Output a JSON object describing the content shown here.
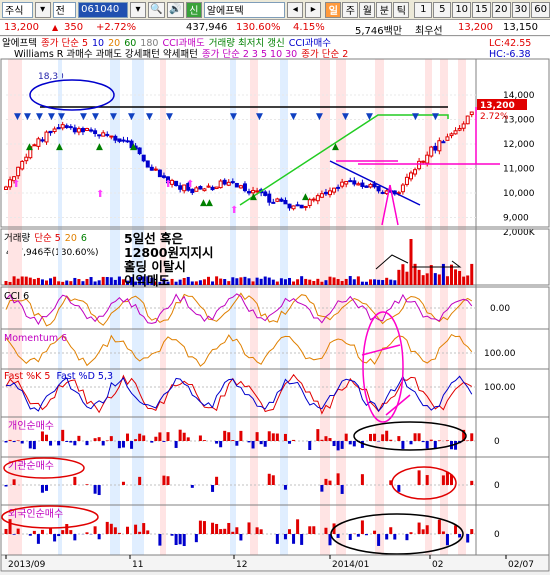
{
  "toolbar": {
    "market_label": "주식",
    "period_label": "전",
    "stock_code": "061040",
    "stock_badge": "신",
    "stock_name": "알에프텍",
    "buttons": [
      "일",
      "주",
      "월",
      "분",
      "틱"
    ],
    "active_button": "일",
    "numbers": [
      "1",
      "5",
      "10",
      "15",
      "20",
      "30",
      "60"
    ]
  },
  "info": {
    "price": "13,200",
    "change": "350",
    "change_pct": "+2.72%",
    "volume": "437,946",
    "volume_ratio": "130.60%",
    "turnover_ratio": "4.15%",
    "amount": "5,746백만",
    "high_label": "최우선",
    "ask": "13,200",
    "bid": "13,150"
  },
  "price_panel": {
    "header_line1": [
      {
        "text": "알에프텍",
        "color": "#000000"
      },
      {
        "text": "종가 단순 5",
        "color": "#e00000"
      },
      {
        "text": "10",
        "color": "#0000cc"
      },
      {
        "text": "20",
        "color": "#e08000"
      },
      {
        "text": "60",
        "color": "#008000"
      },
      {
        "text": "180",
        "color": "#808080"
      },
      {
        "text": "CCI과매도",
        "color": "#c000c0"
      },
      {
        "text": "거래량 최저치 갱신",
        "color": "#008000"
      },
      {
        "text": "CCI과매수",
        "color": "#0000cc"
      }
    ],
    "header_line2": [
      {
        "text": "Williams R 과매수 과매도 강세패턴 약세패턴",
        "color": "#000000"
      },
      {
        "text": "종가 단순 2 3 5 10 30",
        "color": "#c000c0"
      },
      {
        "text": "종가 단순 2",
        "color": "#e00000"
      }
    ],
    "lc": "LC:42.55",
    "hc": "HC:-6.38",
    "price_tag": "13,200",
    "pct_tag": "2.72%",
    "axis": [
      "14,000",
      "13,000",
      "12,000",
      "11,000",
      "10,000",
      "9,000"
    ],
    "top_label": "18,30"
  },
  "volume_panel": {
    "header": [
      {
        "text": "거래량",
        "color": "#000000"
      },
      {
        "text": "단순 5",
        "color": "#e00000"
      },
      {
        "text": "20",
        "color": "#e08000"
      },
      {
        "text": "6",
        "color": "#008000"
      }
    ],
    "sub": "437,946주(130.60%)",
    "axis": "2,000K",
    "annotation_lines": [
      "5일선 혹은",
      "12800원지지시",
      "홀딩 이탈시",
      "이익매도"
    ]
  },
  "cci_panel": {
    "title": "CCI 6",
    "axis": "0.00"
  },
  "momentum_panel": {
    "title": "Momentum 6",
    "axis": "100.00"
  },
  "stoch_panel": {
    "title_k": "Fast %K 5",
    "title_d": "Fast %D 5,3",
    "axis": "100.00"
  },
  "individual_panel": {
    "title": "개인순매수",
    "axis": "0"
  },
  "institution_panel": {
    "title": "기관순매수",
    "axis": "0"
  },
  "foreign_panel": {
    "title": "외국인순매수",
    "axis": "0"
  },
  "date_axis": [
    "2013/09",
    "11",
    "12",
    "2014/01",
    "02",
    "02/07"
  ],
  "colors": {
    "up": "#e00000",
    "down": "#0000cc",
    "ma5": "#e00000",
    "ma20": "#e08000",
    "ma60": "#008000",
    "ma180": "#808080"
  }
}
